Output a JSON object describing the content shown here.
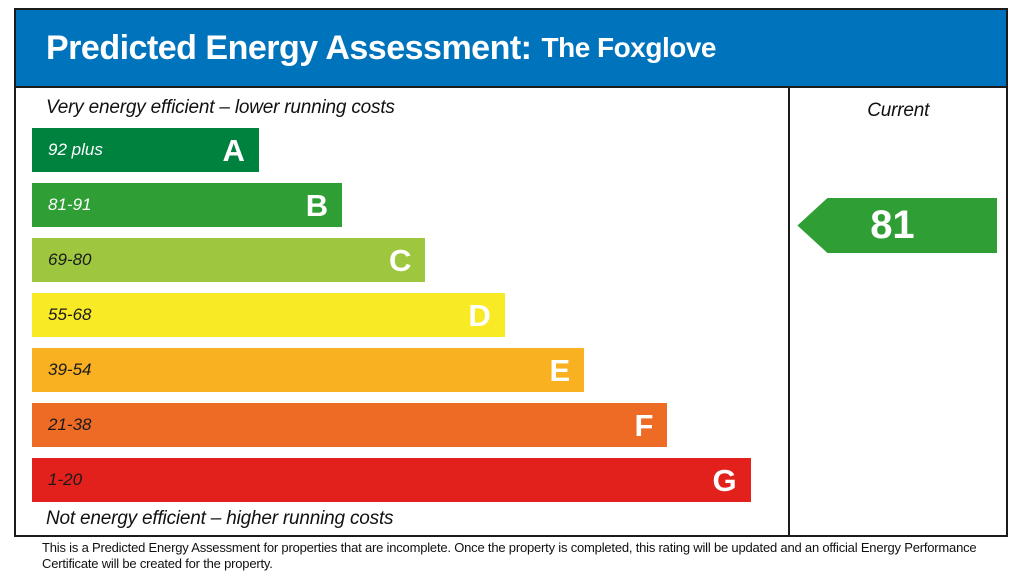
{
  "header": {
    "title": "Predicted Energy Assessment:",
    "subtitle": "The Foxglove",
    "background_color": "#0073BD"
  },
  "chart_data": {
    "type": "bar",
    "title": "Predicted Energy Assessment: The Foxglove",
    "top_caption": "Very energy efficient – lower running costs",
    "bottom_caption": "Not energy efficient – higher running costs",
    "legend_position": "right",
    "bands": [
      {
        "letter": "A",
        "range": "92 plus",
        "color": "#00823F",
        "range_text_color": "#ffffff",
        "width_pct": 30
      },
      {
        "letter": "B",
        "range": "81-91",
        "color": "#2F9E35",
        "range_text_color": "#ffffff",
        "width_pct": 41
      },
      {
        "letter": "C",
        "range": "69-80",
        "color": "#9EC73F",
        "range_text_color": "#1a1a1a",
        "width_pct": 52
      },
      {
        "letter": "D",
        "range": "55-68",
        "color": "#F8EA25",
        "range_text_color": "#1a1a1a",
        "width_pct": 62.5
      },
      {
        "letter": "E",
        "range": "39-54",
        "color": "#F9B021",
        "range_text_color": "#1a1a1a",
        "width_pct": 73
      },
      {
        "letter": "F",
        "range": "21-38",
        "color": "#EE6B25",
        "range_text_color": "#1a1a1a",
        "width_pct": 84
      },
      {
        "letter": "G",
        "range": "1-20",
        "color": "#E2201C",
        "range_text_color": "#1a1a1a",
        "width_pct": 95
      }
    ],
    "current": {
      "label": "Current",
      "value": "81",
      "band": "B",
      "arrow_color": "#2F9E35"
    }
  },
  "footer": {
    "text": "This is a Predicted Energy Assessment for properties that are incomplete. Once the property is completed, this rating will be updated and an official Energy Performance Certificate will be created for the property."
  }
}
